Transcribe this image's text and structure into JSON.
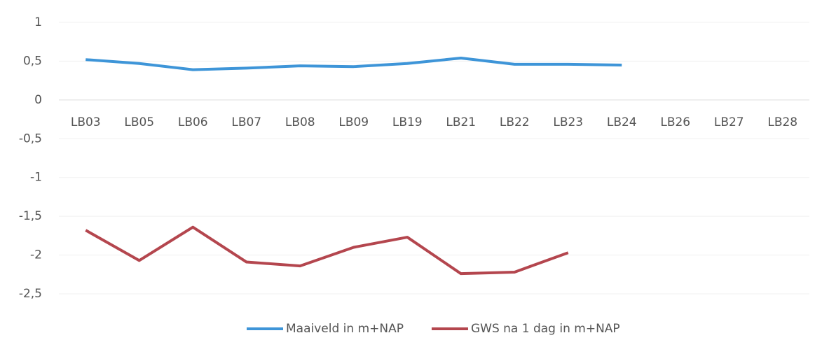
{
  "chart_data": {
    "type": "line",
    "categories": [
      "LB03",
      "LB05",
      "LB06",
      "LB07",
      "LB08",
      "LB09",
      "LB19",
      "LB21",
      "LB22",
      "LB23",
      "LB24",
      "LB26",
      "LB27",
      "LB28"
    ],
    "series": [
      {
        "name": "Maaiveld in m+NAP",
        "color": "#3e95d8",
        "values": [
          0.52,
          0.47,
          0.39,
          0.41,
          0.44,
          0.43,
          0.47,
          0.54,
          0.46,
          0.46,
          0.45,
          null,
          null,
          null
        ]
      },
      {
        "name": "GWS na 1 dag in m+NAP",
        "color": "#b4464e",
        "values": [
          -1.68,
          -2.07,
          -1.64,
          -2.09,
          -2.14,
          -1.9,
          -1.77,
          -2.24,
          -2.22,
          -1.97,
          null,
          null,
          null,
          null
        ]
      }
    ],
    "ylim": [
      -2.5,
      1
    ],
    "yticks": [
      {
        "value": 1,
        "label": "1"
      },
      {
        "value": 0.5,
        "label": "0,5"
      },
      {
        "value": 0,
        "label": "0"
      },
      {
        "value": -0.5,
        "label": "-0,5"
      },
      {
        "value": -1,
        "label": "-1"
      },
      {
        "value": -1.5,
        "label": "-1,5"
      },
      {
        "value": -2,
        "label": "-2"
      },
      {
        "value": -2.5,
        "label": "-2,5"
      }
    ],
    "grid": true,
    "legend": "bottom"
  }
}
